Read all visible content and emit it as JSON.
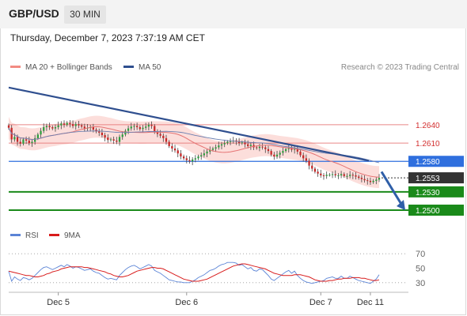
{
  "header": {
    "symbol": "GBP/USD",
    "timeframe": "30 MIN"
  },
  "datetime": "Thursday, December 7, 2023 7:37:19 AM CET",
  "legend": {
    "price": [
      {
        "name": "MA 20 + Bollinger Bands",
        "color": "#f28b82"
      },
      {
        "name": "MA 50",
        "color": "#2f4f8f"
      }
    ],
    "rsi": [
      {
        "name": "RSI",
        "color": "#5b84d6"
      },
      {
        "name": "9MA",
        "color": "#d81b1b"
      }
    ]
  },
  "research": "Research © 2023 Trading Central",
  "chart_data": [
    {
      "type": "candlestick",
      "price_range": [
        1.2478,
        1.2715
      ],
      "levels": [
        {
          "label": "1.2640",
          "value": 1.264,
          "role": "resistance",
          "color": "#e57373"
        },
        {
          "label": "1.2610",
          "value": 1.261,
          "role": "resistance",
          "color": "#e57373"
        },
        {
          "label": "1.2580",
          "value": 1.258,
          "role": "pivot",
          "color": "#2f6fde"
        },
        {
          "label": "1.2553",
          "value": 1.2553,
          "role": "last",
          "color": "#333333"
        },
        {
          "label": "1.2530",
          "value": 1.253,
          "role": "support",
          "color": "#1a8a1a"
        },
        {
          "label": "1.2500",
          "value": 1.25,
          "role": "support",
          "color": "#1a8a1a"
        }
      ],
      "trendline": [
        1.2701,
        1.2581
      ],
      "forecast_arrow": [
        1.2563,
        1.25
      ],
      "bollinger_width": 0.0018,
      "close": [
        1.2635,
        1.2616,
        1.262,
        1.2612,
        1.2609,
        1.2616,
        1.2614,
        1.261,
        1.2612,
        1.2618,
        1.2624,
        1.263,
        1.2636,
        1.2638,
        1.2636,
        1.2634,
        1.2636,
        1.2639,
        1.2642,
        1.264,
        1.2643,
        1.2641,
        1.2638,
        1.2641,
        1.2639,
        1.2637,
        1.2634,
        1.2635,
        1.2636,
        1.2632,
        1.2629,
        1.2627,
        1.2623,
        1.2619,
        1.2615,
        1.2616,
        1.2614,
        1.2612,
        1.262,
        1.2624,
        1.263,
        1.2634,
        1.2637,
        1.2638,
        1.2636,
        1.2633,
        1.2635,
        1.2637,
        1.264,
        1.2638,
        1.2628,
        1.2625,
        1.2622,
        1.2618,
        1.2612,
        1.2605,
        1.2601,
        1.2598,
        1.2593,
        1.2588,
        1.2585,
        1.2582,
        1.258,
        1.2583,
        1.2585,
        1.2588,
        1.259,
        1.2593,
        1.2596,
        1.2599,
        1.2601,
        1.2603,
        1.2606,
        1.2608,
        1.261,
        1.2612,
        1.2613,
        1.2614,
        1.2613,
        1.261,
        1.2611,
        1.2608,
        1.2605,
        1.2607,
        1.2603,
        1.2602,
        1.2604,
        1.2603,
        1.26,
        1.2597,
        1.2591,
        1.2588,
        1.2591,
        1.2594,
        1.2597,
        1.26,
        1.2602,
        1.2599,
        1.2601,
        1.2596,
        1.259,
        1.2585,
        1.2581,
        1.2573,
        1.2568,
        1.2563,
        1.256,
        1.2557,
        1.2556,
        1.2558,
        1.2558,
        1.2559,
        1.2557,
        1.2557,
        1.2559,
        1.2556,
        1.2556,
        1.2558,
        1.2557,
        1.2555,
        1.2553,
        1.2551,
        1.2549,
        1.2548,
        1.2546,
        1.2548,
        1.255,
        1.2553
      ],
      "x_ticks": [
        {
          "label": "Dec 5",
          "index": 17
        },
        {
          "label": "Dec 6",
          "index": 61
        },
        {
          "label": "Dec 7",
          "index": 107
        },
        {
          "label": "Dec 11",
          "index": 124
        }
      ]
    },
    {
      "type": "line",
      "title": "RSI",
      "ylim": [
        20,
        80
      ],
      "y_ticks": [
        70,
        50,
        30
      ],
      "reference_lines": [
        70,
        30
      ],
      "series": [
        {
          "name": "RSI",
          "color": "#5b84d6",
          "values": [
            46,
            32,
            38,
            35,
            33,
            37,
            36,
            34,
            36,
            40,
            44,
            48,
            51,
            52,
            50,
            48,
            50,
            52,
            54,
            52,
            55,
            53,
            50,
            52,
            51,
            49,
            47,
            48,
            49,
            46,
            44,
            43,
            40,
            37,
            35,
            36,
            35,
            34,
            40,
            44,
            48,
            51,
            53,
            54,
            52,
            49,
            51,
            53,
            55,
            53,
            47,
            45,
            43,
            40,
            37,
            34,
            33,
            32,
            31,
            31,
            30,
            30,
            30,
            32,
            34,
            37,
            39,
            41,
            44,
            47,
            48,
            50,
            53,
            55,
            56,
            58,
            58,
            58,
            57,
            54,
            55,
            52,
            49,
            51,
            47,
            46,
            49,
            48,
            44,
            40,
            35,
            33,
            36,
            39,
            42,
            45,
            47,
            43,
            46,
            40,
            36,
            33,
            31,
            30,
            29,
            30,
            31,
            32,
            33,
            36,
            37,
            38,
            36,
            36,
            39,
            36,
            36,
            39,
            37,
            35,
            33,
            32,
            31,
            30,
            29,
            32,
            35,
            41
          ]
        },
        {
          "name": "9MA",
          "color": "#d81b1b",
          "values": [
            46,
            45,
            44,
            43,
            42,
            41,
            40,
            40,
            39,
            38,
            38,
            39,
            40,
            42,
            43,
            45,
            46,
            47,
            49,
            50,
            51,
            52,
            52,
            52,
            52,
            52,
            51,
            51,
            50,
            49,
            48,
            47,
            46,
            45,
            43,
            42,
            40,
            39,
            38,
            38,
            39,
            40,
            42,
            44,
            46,
            47,
            48,
            49,
            50,
            51,
            51,
            50,
            50,
            49,
            47,
            45,
            43,
            41,
            39,
            37,
            35,
            34,
            33,
            32,
            32,
            32,
            33,
            34,
            35,
            37,
            39,
            41,
            43,
            45,
            47,
            49,
            51,
            53,
            54,
            55,
            56,
            56,
            55,
            54,
            53,
            52,
            51,
            50,
            49,
            47,
            45,
            43,
            42,
            41,
            40,
            40,
            40,
            40,
            41,
            41,
            41,
            40,
            39,
            38,
            36,
            34,
            33,
            32,
            32,
            32,
            33,
            33,
            34,
            35,
            35,
            36,
            36,
            36,
            37,
            37,
            37,
            36,
            36,
            35,
            34,
            33,
            33,
            34
          ]
        }
      ]
    }
  ]
}
